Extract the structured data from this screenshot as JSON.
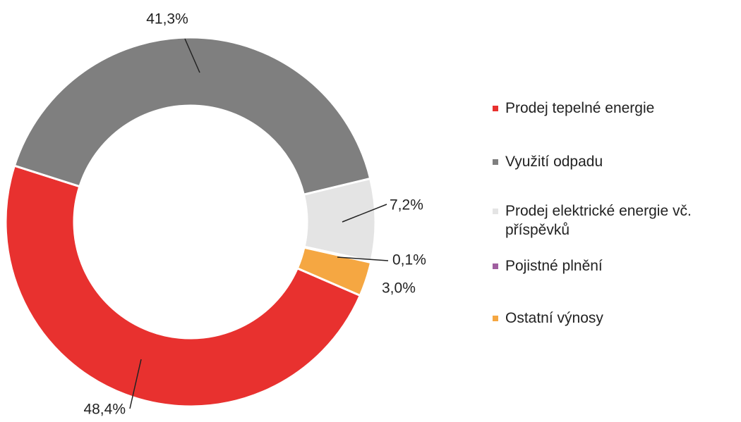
{
  "chart_data": {
    "type": "donut",
    "categories": [
      "Prodej tepelné energie",
      "Využití odpadu",
      "Prodej elektrické energie vč. příspěvků",
      "Pojistné plnění",
      "Ostatní výnosy"
    ],
    "values": [
      48.4,
      41.3,
      7.2,
      0.1,
      3.0
    ],
    "value_labels": [
      "48,4%",
      "41,3%",
      "7,2%",
      "0,1%",
      "3,0%"
    ],
    "colors": [
      "#e8312f",
      "#7f7f7f",
      "#e4e4e4",
      "#a05fa0",
      "#f5a742"
    ],
    "legend": "right"
  }
}
